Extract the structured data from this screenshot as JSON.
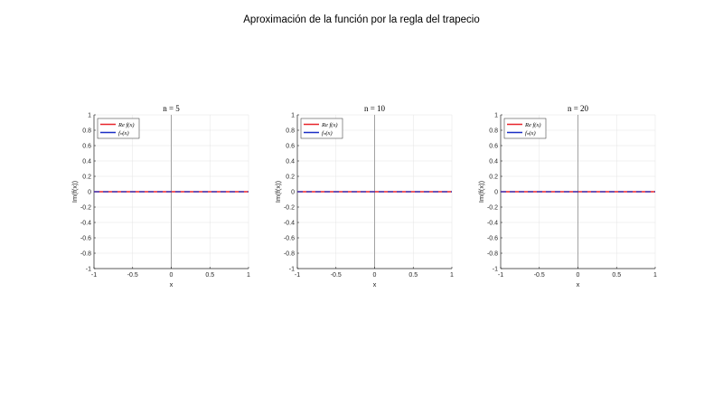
{
  "figure": {
    "suptitle": "Aproximación de la función por la regla del trapecio"
  },
  "chart_data": [
    {
      "type": "line",
      "title": "n = 5",
      "xlabel": "x",
      "ylabel": "Im(f(x))",
      "xlim": [
        -1,
        1
      ],
      "ylim": [
        -1,
        1
      ],
      "xticks": [
        "-1",
        "-0.5",
        "0",
        "0.5",
        "1"
      ],
      "yticks": [
        "-1",
        "-0.8",
        "-0.6",
        "-0.4",
        "-0.2",
        "0",
        "0.2",
        "0.4",
        "0.6",
        "0.8",
        "1"
      ],
      "grid": true,
      "legend_position": "top-left",
      "series": [
        {
          "name": "Re f(x)",
          "color": "#e8242b",
          "style": "solid",
          "x": [
            -1,
            1
          ],
          "y": [
            0,
            0
          ]
        },
        {
          "name": "fₙ(x)",
          "color": "#1a2fc6",
          "style": "dashed",
          "x": [
            -1,
            1
          ],
          "y": [
            0,
            0
          ]
        }
      ]
    },
    {
      "type": "line",
      "title": "n = 10",
      "xlabel": "x",
      "ylabel": "Im(f(x))",
      "xlim": [
        -1,
        1
      ],
      "ylim": [
        -1,
        1
      ],
      "xticks": [
        "-1",
        "-0.5",
        "0",
        "0.5",
        "1"
      ],
      "yticks": [
        "-1",
        "-0.8",
        "-0.6",
        "-0.4",
        "-0.2",
        "0",
        "0.2",
        "0.4",
        "0.6",
        "0.8",
        "1"
      ],
      "grid": true,
      "legend_position": "top-left",
      "series": [
        {
          "name": "Re f(x)",
          "color": "#e8242b",
          "style": "solid",
          "x": [
            -1,
            1
          ],
          "y": [
            0,
            0
          ]
        },
        {
          "name": "fₙ(x)",
          "color": "#1a2fc6",
          "style": "dashed",
          "x": [
            -1,
            1
          ],
          "y": [
            0,
            0
          ]
        }
      ]
    },
    {
      "type": "line",
      "title": "n = 20",
      "xlabel": "x",
      "ylabel": "Im(f(x))",
      "xlim": [
        -1,
        1
      ],
      "ylim": [
        -1,
        1
      ],
      "xticks": [
        "-1",
        "-0.5",
        "0",
        "0.5",
        "1"
      ],
      "yticks": [
        "-1",
        "-0.8",
        "-0.6",
        "-0.4",
        "-0.2",
        "0",
        "0.2",
        "0.4",
        "0.6",
        "0.8",
        "1"
      ],
      "grid": true,
      "legend_position": "top-left",
      "series": [
        {
          "name": "Re f(x)",
          "color": "#e8242b",
          "style": "solid",
          "x": [
            -1,
            1
          ],
          "y": [
            0,
            0
          ]
        },
        {
          "name": "fₙ(x)",
          "color": "#1a2fc6",
          "style": "dashed",
          "x": [
            -1,
            1
          ],
          "y": [
            0,
            0
          ]
        }
      ]
    }
  ]
}
